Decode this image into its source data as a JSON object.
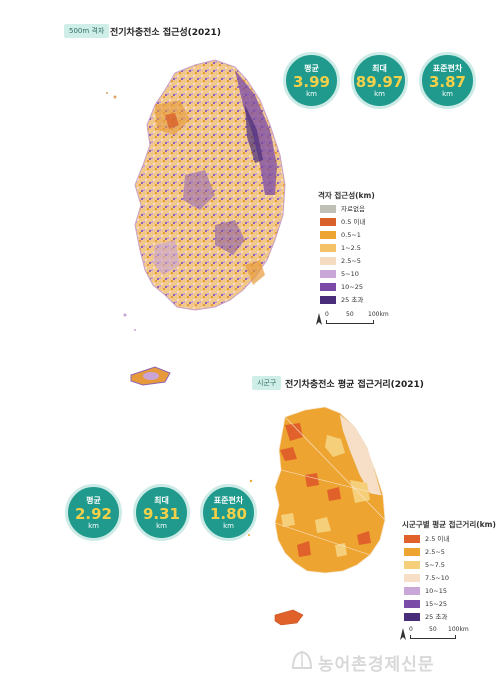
{
  "map1": {
    "tag": "500m 격자",
    "title": "전기차충전소 접근성(2021)",
    "stats": [
      {
        "label": "평균",
        "value": "3.99",
        "unit": "km"
      },
      {
        "label": "최대",
        "value": "89.97",
        "unit": "km"
      },
      {
        "label": "표준편차",
        "value": "3.87",
        "unit": "km"
      }
    ],
    "legend_title": "격자 접근성(km)",
    "legend": [
      {
        "label": "자료없음",
        "color": "#bfbfb8"
      },
      {
        "label": "0.5 이내",
        "color": "#d9622b"
      },
      {
        "label": "0.5~1",
        "color": "#eea431"
      },
      {
        "label": "1~2.5",
        "color": "#f4c266"
      },
      {
        "label": "2.5~5",
        "color": "#f5dcc0"
      },
      {
        "label": "5~10",
        "color": "#c8a6d6"
      },
      {
        "label": "10~25",
        "color": "#7a4aa6"
      },
      {
        "label": "25 초과",
        "color": "#4a2d7a"
      }
    ],
    "scale": {
      "ticks": [
        "0",
        "50",
        "100km"
      ]
    }
  },
  "map2": {
    "tag": "시군구",
    "title": "전기차충전소 평균 접근거리(2021)",
    "stats": [
      {
        "label": "평균",
        "value": "2.92",
        "unit": "km"
      },
      {
        "label": "최대",
        "value": "9.31",
        "unit": "km"
      },
      {
        "label": "표준편차",
        "value": "1.80",
        "unit": "km"
      }
    ],
    "legend_title": "시군구별 평균 접근거리(km)",
    "legend": [
      {
        "label": "2.5 이내",
        "color": "#e0612a"
      },
      {
        "label": "2.5~5",
        "color": "#eea431"
      },
      {
        "label": "5~7.5",
        "color": "#f6cf7a"
      },
      {
        "label": "7.5~10",
        "color": "#f6dfc6"
      },
      {
        "label": "10~15",
        "color": "#c9a8d8"
      },
      {
        "label": "15~25",
        "color": "#7b4ca7"
      },
      {
        "label": "25 초과",
        "color": "#4a2d7a"
      }
    ],
    "scale": {
      "ticks": [
        "0",
        "50",
        "100km"
      ]
    }
  },
  "watermark": "농어촌경제신문"
}
